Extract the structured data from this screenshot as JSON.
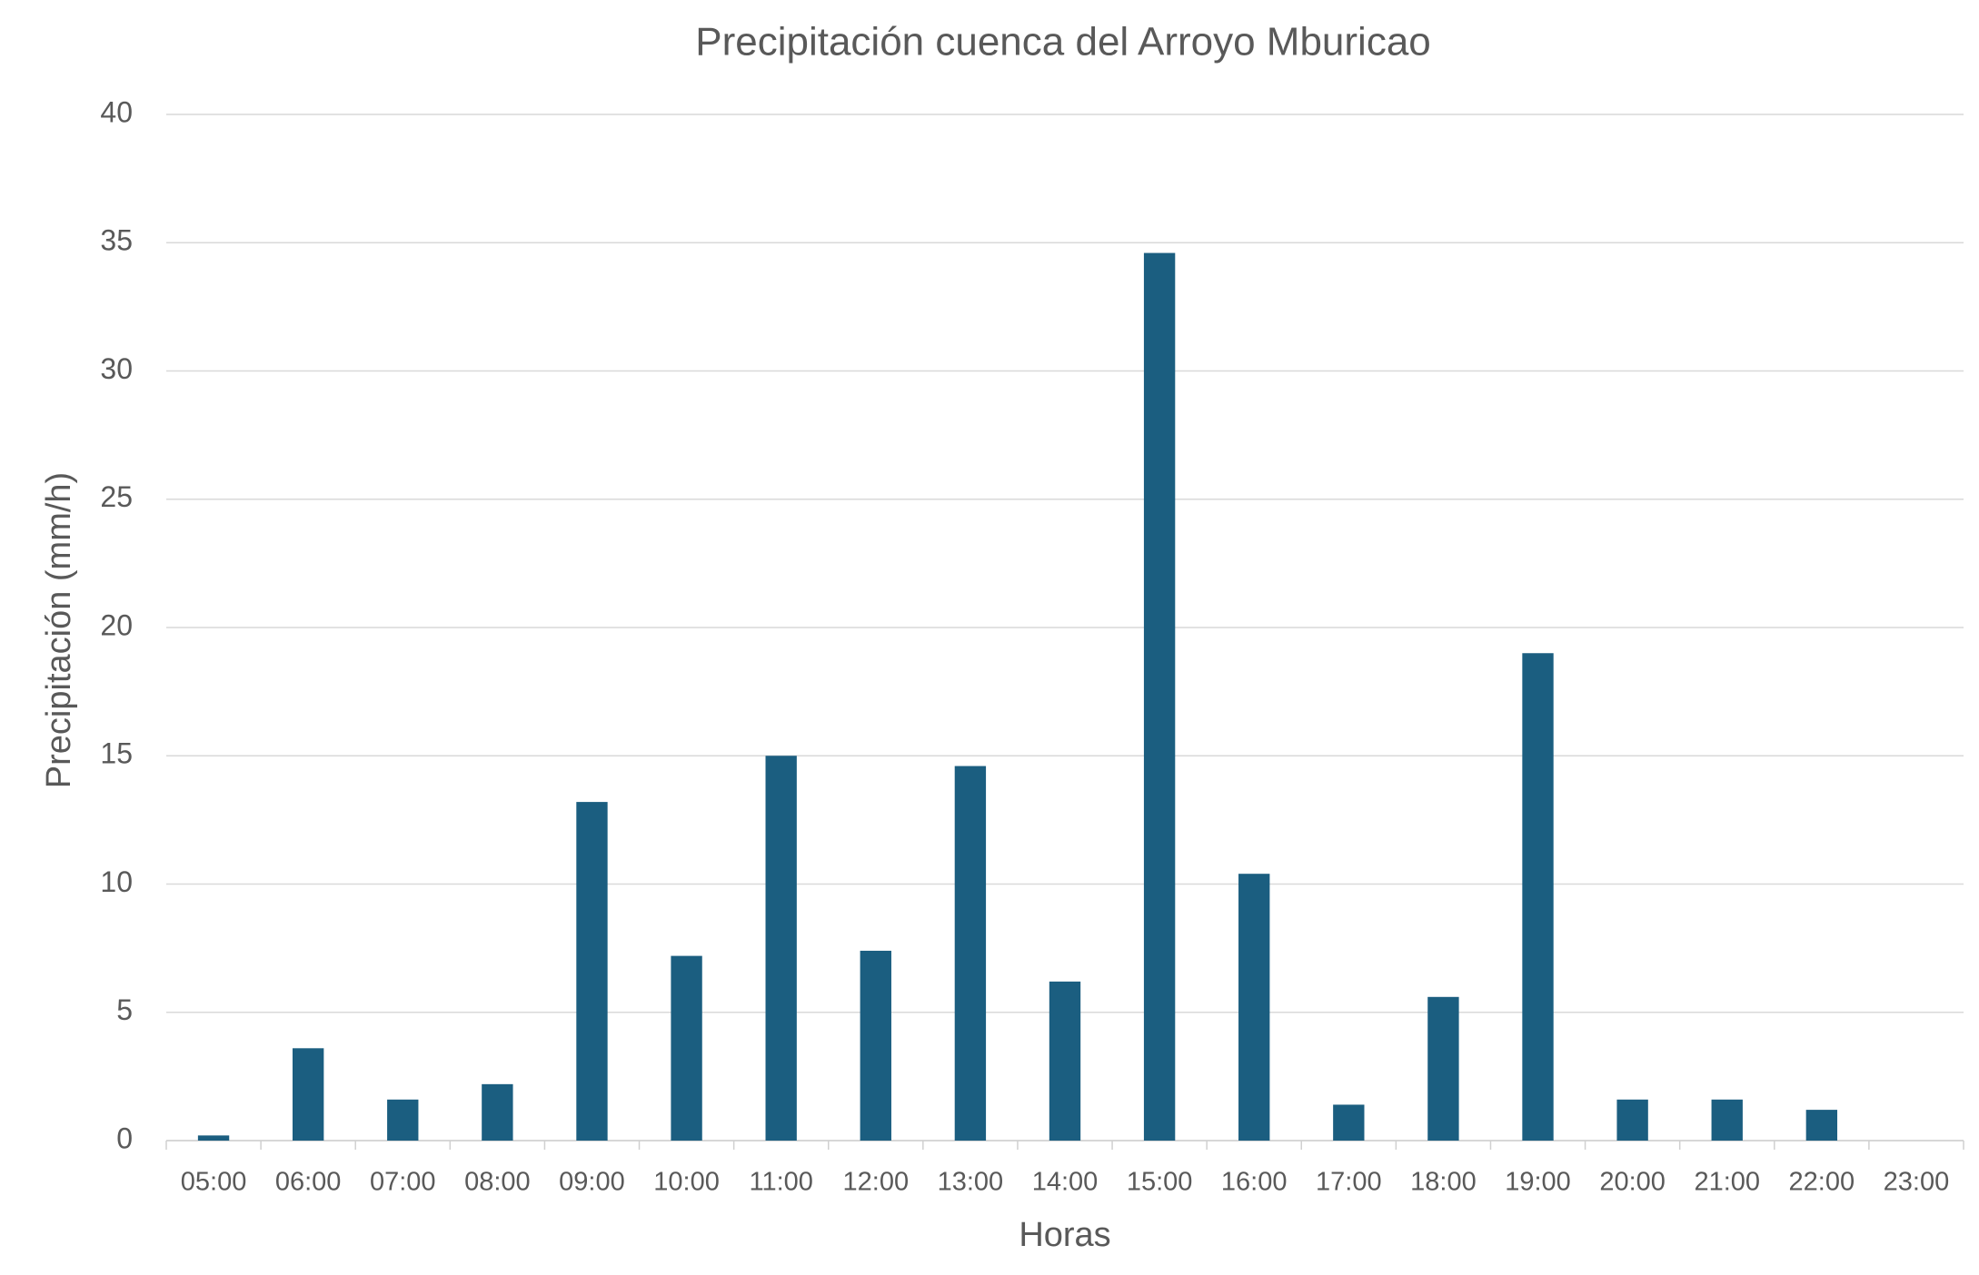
{
  "chart_data": {
    "type": "bar",
    "title": "Precipitación cuenca del Arroyo Mburicao",
    "x_label": "Horas",
    "y_label": "Precipitación (mm/h)",
    "categories": [
      "05:00",
      "06:00",
      "07:00",
      "08:00",
      "09:00",
      "10:00",
      "11:00",
      "12:00",
      "13:00",
      "14:00",
      "15:00",
      "16:00",
      "17:00",
      "18:00",
      "19:00",
      "20:00",
      "21:00",
      "22:00",
      "23:00"
    ],
    "values": [
      0.2,
      3.6,
      1.6,
      2.2,
      13.2,
      7.2,
      15.0,
      7.4,
      14.6,
      6.2,
      34.6,
      10.4,
      1.4,
      5.6,
      19.0,
      1.6,
      1.6,
      1.2,
      0
    ],
    "color": "#1b5e80",
    "ylim": [
      0,
      40
    ],
    "yticks": [
      0,
      5,
      10,
      15,
      20,
      25,
      30,
      35,
      40
    ],
    "grid": true
  }
}
